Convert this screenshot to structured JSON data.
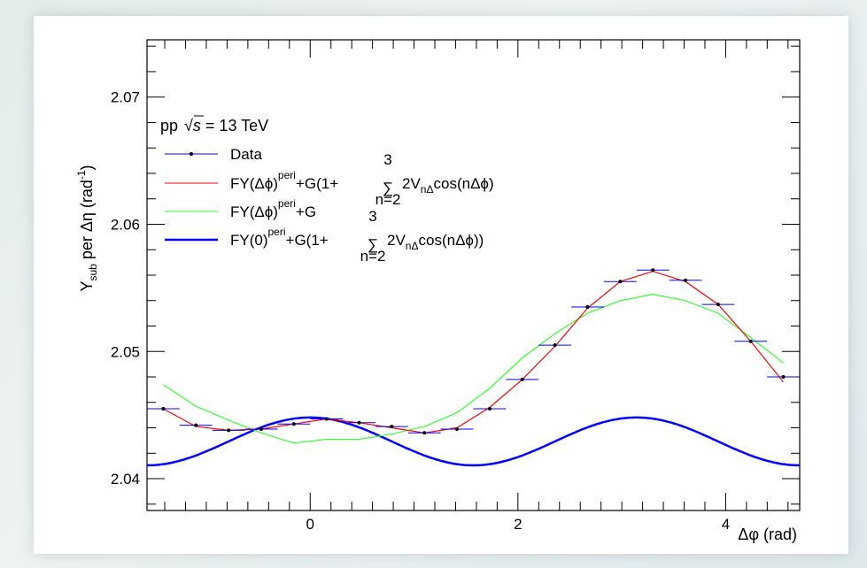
{
  "chart_data": {
    "type": "line",
    "ylabel_main": "Y",
    "ylabel_sub": "sub",
    "ylabel_rest": " per Δη (rad",
    "ylabel_sup": "-1",
    "ylabel_close": ")",
    "xlabel": "Δφ (rad)",
    "xlim": [
      -1.5708,
      4.7124
    ],
    "ylim": [
      2.0375,
      2.0745
    ],
    "xticks": [
      0,
      2,
      4
    ],
    "xtick_labels": [
      "0",
      "2",
      "4"
    ],
    "yticks": [
      2.04,
      2.05,
      2.06,
      2.07
    ],
    "ytick_labels": [
      "2.04",
      "2.05",
      "2.06",
      "2.07"
    ],
    "system_label": "pp ",
    "energy_label": "s",
    "energy_value": " = 13 TeV",
    "legend": {
      "data": "Data",
      "fit_red": {
        "a": "FY(Δϕ)",
        "sup1": "peri",
        "b": "+G(1+",
        "sum_top": "3",
        "sum_bottom": "n=2",
        "c": "2V",
        "sub": "nΔ",
        "d": "cos(nΔϕ)"
      },
      "fit_green": {
        "a": "FY(Δϕ)",
        "sup1": "peri",
        "b": "+G"
      },
      "fit_blue": {
        "a": "FY(0)",
        "sup1": "peri",
        "b": "+G(1+",
        "sum_top": "3",
        "sum_bottom": "n=2",
        "c": "2V",
        "sub": "nΔ",
        "d": "cos(nΔϕ))"
      }
    },
    "series": [
      {
        "name": "Data",
        "color": "#000000",
        "x": [
          -1.414,
          -1.1,
          -0.785,
          -0.471,
          -0.157,
          0.157,
          0.471,
          0.785,
          1.1,
          1.414,
          1.728,
          2.042,
          2.356,
          2.67,
          2.985,
          3.299,
          3.613,
          3.927,
          4.241,
          4.555
        ],
        "y": [
          2.0455,
          2.0442,
          2.0438,
          2.0439,
          2.0443,
          2.0447,
          2.0444,
          2.0441,
          2.0436,
          2.0439,
          2.0455,
          2.0478,
          2.0505,
          2.0535,
          2.0555,
          2.0564,
          2.0556,
          2.0537,
          2.0508,
          2.048
        ],
        "xerr": 0.157
      },
      {
        "name": "fit_red",
        "color": "#ff0000",
        "x": [
          -1.414,
          -1.1,
          -0.785,
          -0.471,
          -0.157,
          0.157,
          0.471,
          0.785,
          1.1,
          1.414,
          1.728,
          2.042,
          2.356,
          2.67,
          2.985,
          3.299,
          3.613,
          3.927,
          4.241,
          4.555
        ],
        "y": [
          2.0455,
          2.0441,
          2.0438,
          2.0439,
          2.0443,
          2.0447,
          2.0444,
          2.044,
          2.0436,
          2.044,
          2.0456,
          2.0478,
          2.0504,
          2.0534,
          2.0555,
          2.0563,
          2.0555,
          2.0537,
          2.0508,
          2.0476
        ]
      },
      {
        "name": "fit_green",
        "color": "#33ff33",
        "x": [
          -1.414,
          -1.1,
          -0.785,
          -0.471,
          -0.157,
          0.157,
          0.471,
          0.785,
          1.1,
          1.414,
          1.728,
          2.042,
          2.356,
          2.67,
          2.985,
          3.299,
          3.613,
          3.927,
          4.241,
          4.555
        ],
        "y": [
          2.0474,
          2.0457,
          2.0446,
          2.0436,
          2.0428,
          2.0431,
          2.0431,
          2.0435,
          2.0441,
          2.0452,
          2.0471,
          2.0495,
          2.0514,
          2.053,
          2.054,
          2.0545,
          2.054,
          2.053,
          2.0511,
          2.0491
        ]
      },
      {
        "name": "fit_blue",
        "color": "#0000ff",
        "baseline": 2.04293,
        "amplitude": 0.00188,
        "period_factor": 2
      }
    ]
  }
}
